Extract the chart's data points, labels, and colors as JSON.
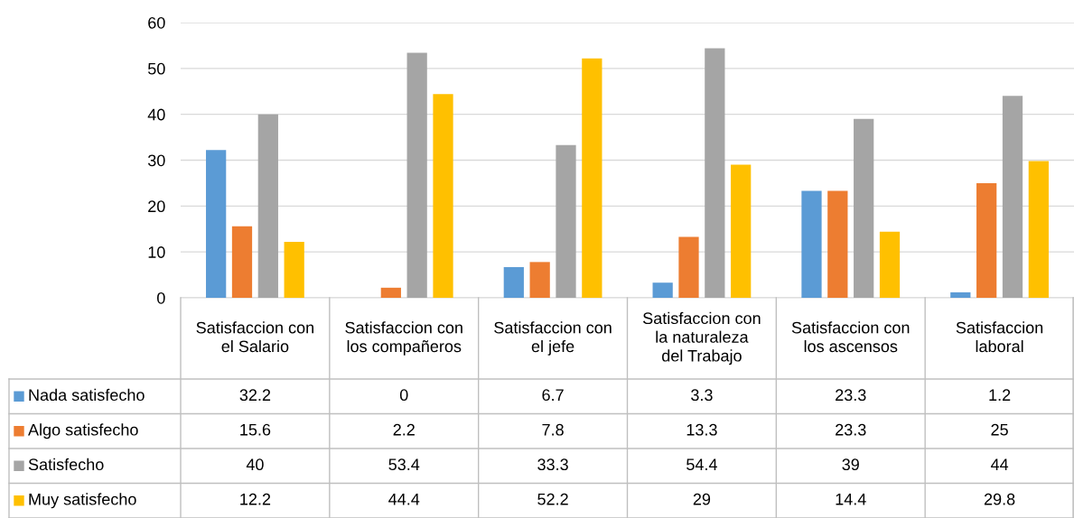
{
  "chart_data": {
    "type": "bar",
    "categories": [
      "Satisfaccion con\nel Salario",
      "Satisfaccion con\nlos compañeros",
      "Satisfaccion con\nel jefe",
      "Satisfaccion con\nla naturaleza\ndel Trabajo",
      "Satisfaccion con\nlos ascensos",
      "Satisfaccion\nlaboral"
    ],
    "series": [
      {
        "name": "Nada satisfecho",
        "color": "#5b9bd5",
        "values": [
          32.2,
          0,
          6.7,
          3.3,
          23.3,
          1.2
        ]
      },
      {
        "name": "Algo satisfecho",
        "color": "#ed7d31",
        "values": [
          15.6,
          2.2,
          7.8,
          13.3,
          23.3,
          25
        ]
      },
      {
        "name": "Satisfecho",
        "color": "#a5a5a5",
        "values": [
          40,
          53.4,
          33.3,
          54.4,
          39,
          44
        ]
      },
      {
        "name": "Muy satisfecho",
        "color": "#ffc000",
        "values": [
          12.2,
          44.4,
          52.2,
          29,
          14.4,
          29.8
        ]
      }
    ],
    "ylim": [
      0,
      60
    ],
    "yticks": [
      0,
      10,
      20,
      30,
      40,
      50,
      60
    ],
    "grid": "y",
    "legend": "bottom",
    "data_labels": true
  }
}
